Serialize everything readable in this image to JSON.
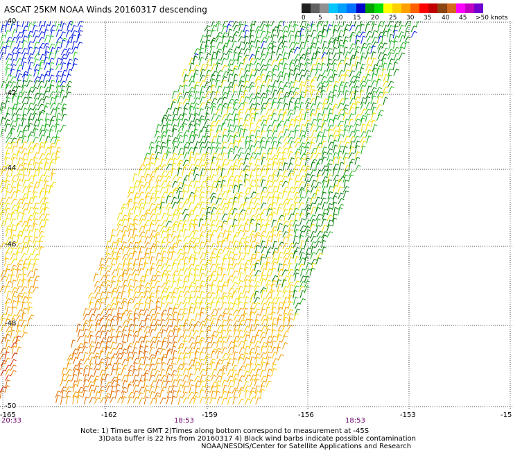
{
  "title": "ASCAT 25KM NOAA Winds 20160317 descending",
  "legend": {
    "labels": [
      "0",
      "5",
      "10",
      "15",
      "20",
      "25",
      "30",
      "35",
      "40",
      "45",
      ">50 knots"
    ],
    "colors": [
      "#202020",
      "#606060",
      "#909090",
      "#00c8ff",
      "#00a0ff",
      "#0070ff",
      "#0000c8",
      "#00a000",
      "#00e000",
      "#ffff00",
      "#ffd000",
      "#ffa000",
      "#ff6000",
      "#ff0000",
      "#c00000",
      "#8b4513",
      "#d2691e",
      "#ff00ff",
      "#c000c0",
      "#7000d0"
    ]
  },
  "axes": {
    "lat_labels": [
      "-40",
      "-42",
      "-44",
      "-46",
      "-48",
      "-50"
    ],
    "lon_labels": [
      "-165",
      "-162",
      "-159",
      "-156",
      "-153",
      "-15"
    ]
  },
  "times": {
    "left": "20:33",
    "middle": "18:53",
    "right": "18:53"
  },
  "notes": {
    "line1": "Note: 1) Times are GMT 2)Times along bottom correspond to measurement at -45S",
    "line2": "3)Data buffer is 22 hrs from 20160317 4) Black wind barbs indicate possible contamination",
    "line3": "NOAA/NESDIS/Center for Satellite Applications and Research"
  },
  "map": {
    "lat_range": [
      -50,
      -40
    ],
    "lon_range": [
      -165,
      -150
    ],
    "grid": true,
    "barb_colors": {
      "blue": "#0018e0",
      "dark_green": "#007a00",
      "green": "#1fb31f",
      "light_green": "#30d030",
      "yellow": "#f0e000",
      "gold": "#ffc400",
      "orange": "#f39a00",
      "dark_orange": "#e06a00",
      "red": "#d42000"
    }
  }
}
